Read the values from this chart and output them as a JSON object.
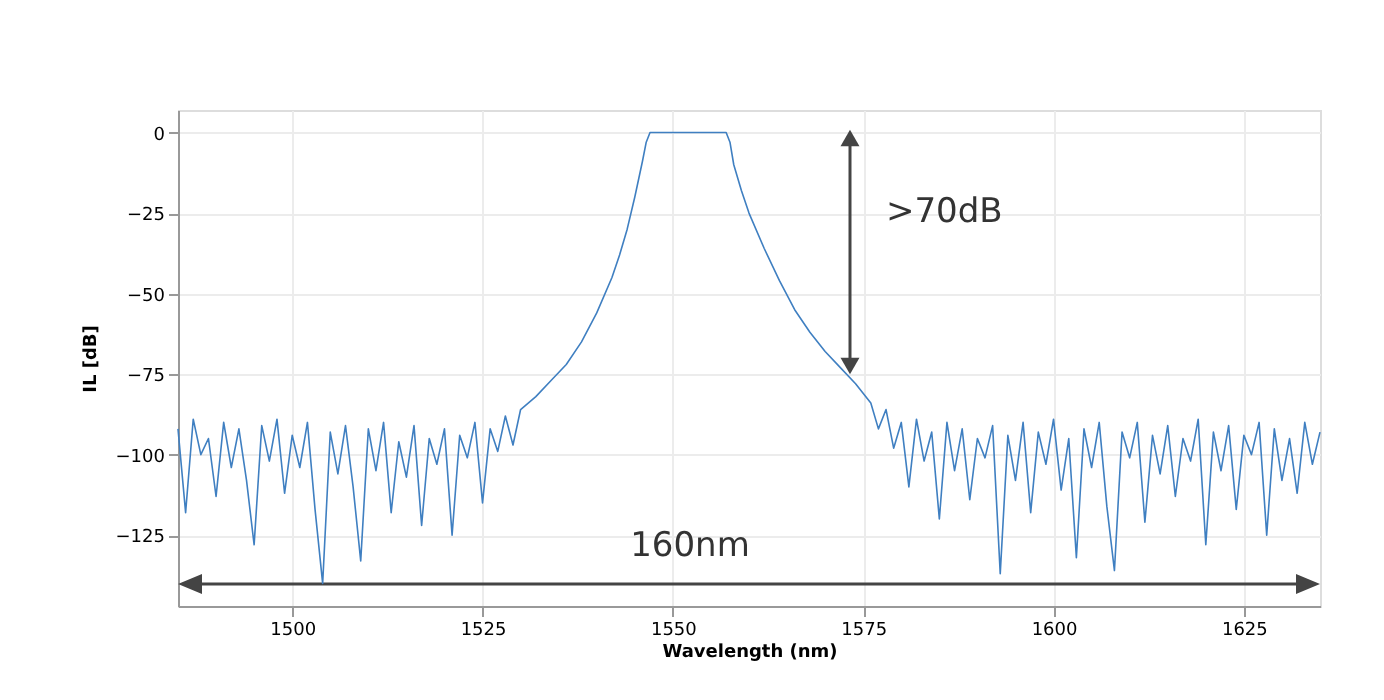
{
  "chart_data": {
    "type": "line",
    "xlabel": "Wavelength (nm)",
    "ylabel": "IL [dB]",
    "xlim": [
      1485,
      1635
    ],
    "xticks": [
      1500,
      1525,
      1550,
      1575,
      1600,
      1625
    ],
    "ylim": [
      -147,
      7
    ],
    "yticks": [
      0,
      -25,
      -50,
      -75,
      -100,
      -125
    ],
    "grid": true,
    "annotations": [
      ">70dB",
      "160nm"
    ],
    "x": [
      1485,
      1486,
      1487,
      1488,
      1489,
      1490,
      1491,
      1492,
      1493,
      1494,
      1495,
      1496,
      1497,
      1498,
      1499,
      1500,
      1501,
      1502,
      1503,
      1504,
      1505,
      1506,
      1507,
      1508,
      1509,
      1510,
      1511,
      1512,
      1513,
      1514,
      1515,
      1516,
      1517,
      1518,
      1519,
      1520,
      1521,
      1522,
      1523,
      1524,
      1525,
      1526,
      1527,
      1528,
      1529,
      1530,
      1532,
      1534,
      1536,
      1538,
      1540,
      1542,
      1543,
      1544,
      1545,
      1546,
      1546.5,
      1547,
      1557,
      1557.5,
      1558,
      1559,
      1560,
      1562,
      1564,
      1566,
      1568,
      1570,
      1572,
      1574,
      1576,
      1577,
      1578,
      1579,
      1580,
      1581,
      1582,
      1583,
      1584,
      1585,
      1586,
      1587,
      1588,
      1589,
      1590,
      1591,
      1592,
      1593,
      1594,
      1595,
      1596,
      1597,
      1598,
      1599,
      1600,
      1601,
      1602,
      1603,
      1604,
      1605,
      1606,
      1607,
      1608,
      1609,
      1610,
      1611,
      1612,
      1613,
      1614,
      1615,
      1616,
      1617,
      1618,
      1619,
      1620,
      1621,
      1622,
      1623,
      1624,
      1625,
      1626,
      1627,
      1628,
      1629,
      1630,
      1631,
      1632,
      1633,
      1634,
      1635
    ],
    "series": [
      {
        "color": "#3f7fc1",
        "values": [
          -92,
          -118,
          -89,
          -100,
          -95,
          -113,
          -90,
          -104,
          -92,
          -108,
          -128,
          -91,
          -102,
          -89,
          -112,
          -94,
          -104,
          -90,
          -117,
          -140,
          -93,
          -106,
          -91,
          -110,
          -133,
          -92,
          -105,
          -90,
          -118,
          -96,
          -107,
          -91,
          -122,
          -95,
          -103,
          -92,
          -125,
          -94,
          -101,
          -90,
          -115,
          -92,
          -99,
          -88,
          -97,
          -86,
          -82,
          -77,
          -72,
          -65,
          -56,
          -45,
          -38,
          -30,
          -20,
          -9,
          -3,
          0,
          0,
          -3,
          -10,
          -18,
          -25,
          -36,
          -46,
          -55,
          -62,
          -68,
          -73,
          -78,
          -84,
          -92,
          -86,
          -98,
          -90,
          -110,
          -89,
          -102,
          -93,
          -120,
          -90,
          -105,
          -92,
          -114,
          -95,
          -101,
          -91,
          -137,
          -94,
          -108,
          -90,
          -118,
          -93,
          -103,
          -89,
          -111,
          -95,
          -132,
          -92,
          -104,
          -90,
          -116,
          -136,
          -93,
          -101,
          -90,
          -121,
          -94,
          -106,
          -91,
          -113,
          -95,
          -102,
          -89,
          -128,
          -93,
          -105,
          -91,
          -117,
          -94,
          -100,
          -90,
          -125,
          -92,
          -108,
          -95,
          -112,
          -90,
          -103,
          -93
        ]
      }
    ]
  }
}
